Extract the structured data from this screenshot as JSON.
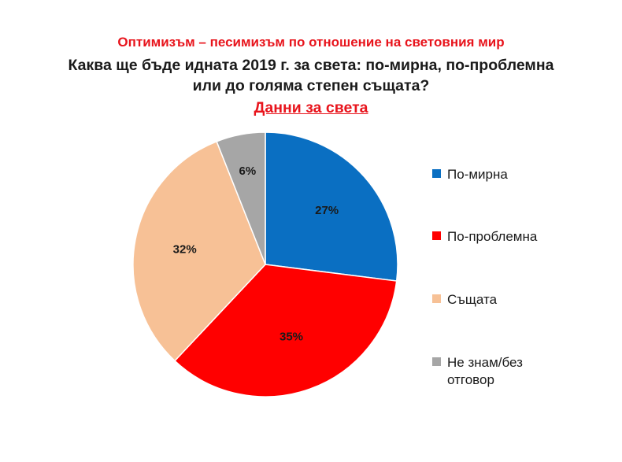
{
  "header": {
    "top_title": "Оптимизъм – песимизъм по отношение на световния мир",
    "question_line1": "Каква ще бъде идната 2019 г. за света: по-мирна, по-проблемна",
    "question_line2": "или до голяма степен същата?",
    "subtitle": "Данни за света"
  },
  "chart_data": {
    "type": "pie",
    "title": "Каква ще бъде идната 2019 г. за света: по-мирна, по-проблемна или до голяма степен същата?",
    "subtitle": "Данни за света",
    "legend_position": "right",
    "categories": [
      "По-мирна",
      "По-проблемна",
      "Същата",
      "Не знам/без отговор"
    ],
    "values": [
      27,
      35,
      32,
      6
    ],
    "labels": [
      "27%",
      "35%",
      "32%",
      "6%"
    ],
    "colors": [
      "#0a6fc2",
      "#ff0000",
      "#f7c196",
      "#a6a6a6"
    ]
  },
  "legend": {
    "items": [
      {
        "label": "По-мирна"
      },
      {
        "label": "По-проблемна"
      },
      {
        "label": "Същата"
      },
      {
        "label_line1": "Не знам/без",
        "label_line2": "отговор"
      }
    ]
  }
}
